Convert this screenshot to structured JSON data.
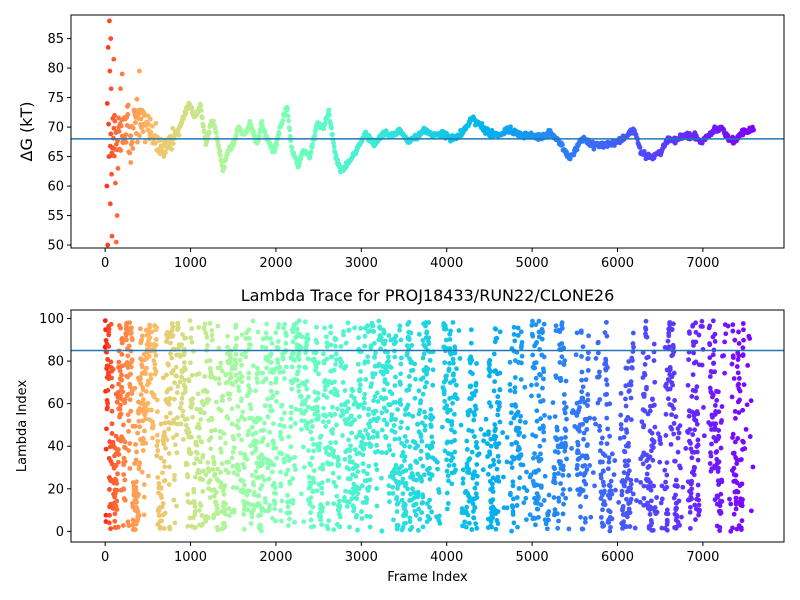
{
  "chart_data": [
    {
      "type": "scatter",
      "title": "",
      "xlabel": "",
      "ylabel": "ΔG (kT)",
      "xlim": [
        -400,
        7950
      ],
      "ylim": [
        49.5,
        89
      ],
      "xticks": [
        0,
        1000,
        2000,
        3000,
        4000,
        5000,
        6000,
        7000
      ],
      "yticks": [
        50,
        55,
        60,
        65,
        70,
        75,
        80,
        85
      ],
      "hline": 68.0,
      "hline_color": "#1f77b4",
      "colormap": "rainbow",
      "color_by": "frame index (red at start, violet at end)",
      "x_max": 7600,
      "trace_points": [
        [
          60,
          69.0
        ],
        [
          120,
          67.5
        ],
        [
          200,
          70.5
        ],
        [
          300,
          69.0
        ],
        [
          420,
          71.5
        ],
        [
          500,
          70.0
        ],
        [
          600,
          68.0
        ],
        [
          700,
          66.5
        ],
        [
          780,
          67.5
        ],
        [
          860,
          69.5
        ],
        [
          940,
          72.5
        ],
        [
          980,
          74.0
        ],
        [
          1050,
          71.5
        ],
        [
          1120,
          73.5
        ],
        [
          1180,
          67.0
        ],
        [
          1250,
          71.0
        ],
        [
          1300,
          69.0
        ],
        [
          1380,
          62.5
        ],
        [
          1440,
          66.0
        ],
        [
          1500,
          67.0
        ],
        [
          1560,
          70.0
        ],
        [
          1620,
          68.5
        ],
        [
          1700,
          70.5
        ],
        [
          1780,
          67.0
        ],
        [
          1830,
          70.5
        ],
        [
          1900,
          68.0
        ],
        [
          1980,
          65.5
        ],
        [
          2050,
          70.0
        ],
        [
          2130,
          73.5
        ],
        [
          2180,
          66.5
        ],
        [
          2260,
          63.5
        ],
        [
          2320,
          66.0
        ],
        [
          2400,
          65.0
        ],
        [
          2480,
          70.5
        ],
        [
          2560,
          70.0
        ],
        [
          2620,
          72.5
        ],
        [
          2700,
          65.0
        ],
        [
          2760,
          62.5
        ],
        [
          2850,
          64.0
        ],
        [
          2920,
          65.5
        ],
        [
          2980,
          67.0
        ],
        [
          3050,
          69.0
        ],
        [
          3150,
          67.0
        ],
        [
          3250,
          69.0
        ],
        [
          3350,
          68.5
        ],
        [
          3450,
          69.5
        ],
        [
          3550,
          67.5
        ],
        [
          3650,
          68.5
        ],
        [
          3750,
          69.5
        ],
        [
          3850,
          68.5
        ],
        [
          3950,
          69.0
        ],
        [
          4050,
          68.0
        ],
        [
          4150,
          68.5
        ],
        [
          4230,
          70.0
        ],
        [
          4300,
          71.5
        ],
        [
          4400,
          70.0
        ],
        [
          4500,
          69.0
        ],
        [
          4600,
          68.5
        ],
        [
          4700,
          69.5
        ],
        [
          4800,
          69.0
        ],
        [
          4900,
          68.5
        ],
        [
          5000,
          68.5
        ],
        [
          5100,
          68.5
        ],
        [
          5200,
          69.0
        ],
        [
          5300,
          68.0
        ],
        [
          5380,
          66.0
        ],
        [
          5440,
          64.5
        ],
        [
          5520,
          66.5
        ],
        [
          5600,
          68.0
        ],
        [
          5700,
          67.0
        ],
        [
          5800,
          67.0
        ],
        [
          5900,
          67.0
        ],
        [
          6000,
          67.5
        ],
        [
          6100,
          68.5
        ],
        [
          6200,
          69.5
        ],
        [
          6270,
          66.0
        ],
        [
          6320,
          65.0
        ],
        [
          6400,
          65.0
        ],
        [
          6500,
          65.5
        ],
        [
          6560,
          67.5
        ],
        [
          6620,
          68.0
        ],
        [
          6700,
          68.0
        ],
        [
          6800,
          68.5
        ],
        [
          6900,
          68.5
        ],
        [
          6980,
          67.5
        ],
        [
          7050,
          68.5
        ],
        [
          7150,
          69.5
        ],
        [
          7220,
          70.0
        ],
        [
          7300,
          68.0
        ],
        [
          7380,
          67.5
        ],
        [
          7450,
          69.0
        ],
        [
          7550,
          69.5
        ],
        [
          7600,
          69.5
        ]
      ],
      "early_scatter": [
        [
          20,
          60.0
        ],
        [
          25,
          74.0
        ],
        [
          30,
          50.0
        ],
        [
          35,
          83.5
        ],
        [
          40,
          70.5
        ],
        [
          45,
          65.0
        ],
        [
          50,
          88.0
        ],
        [
          55,
          79.5
        ],
        [
          60,
          57.0
        ],
        [
          65,
          85.0
        ],
        [
          70,
          76.5
        ],
        [
          75,
          62.0
        ],
        [
          80,
          51.5
        ],
        [
          90,
          66.5
        ],
        [
          100,
          81.5
        ],
        [
          110,
          72.0
        ],
        [
          120,
          60.5
        ],
        [
          130,
          50.5
        ],
        [
          140,
          55.0
        ],
        [
          150,
          63.0
        ],
        [
          160,
          70.0
        ],
        [
          180,
          76.5
        ],
        [
          200,
          79.0
        ],
        [
          230,
          68.0
        ],
        [
          260,
          73.5
        ],
        [
          300,
          64.0
        ],
        [
          350,
          72.0
        ],
        [
          400,
          79.5
        ],
        [
          450,
          70.5
        ],
        [
          520,
          68.0
        ]
      ]
    },
    {
      "type": "scatter",
      "title": "Lambda Trace for PROJ18433/RUN22/CLONE26",
      "xlabel": "Frame Index",
      "ylabel": "Lambda Index",
      "xlim": [
        -400,
        7950
      ],
      "ylim": [
        -5,
        104
      ],
      "xticks": [
        0,
        1000,
        2000,
        3000,
        4000,
        5000,
        6000,
        7000
      ],
      "yticks": [
        0,
        20,
        40,
        60,
        80,
        100
      ],
      "hline": 85,
      "hline_color": "#1f77b4",
      "colormap": "rainbow",
      "color_by": "frame index (red at start, violet at end)",
      "x_max": 7600,
      "value_range": [
        0,
        99
      ]
    }
  ]
}
